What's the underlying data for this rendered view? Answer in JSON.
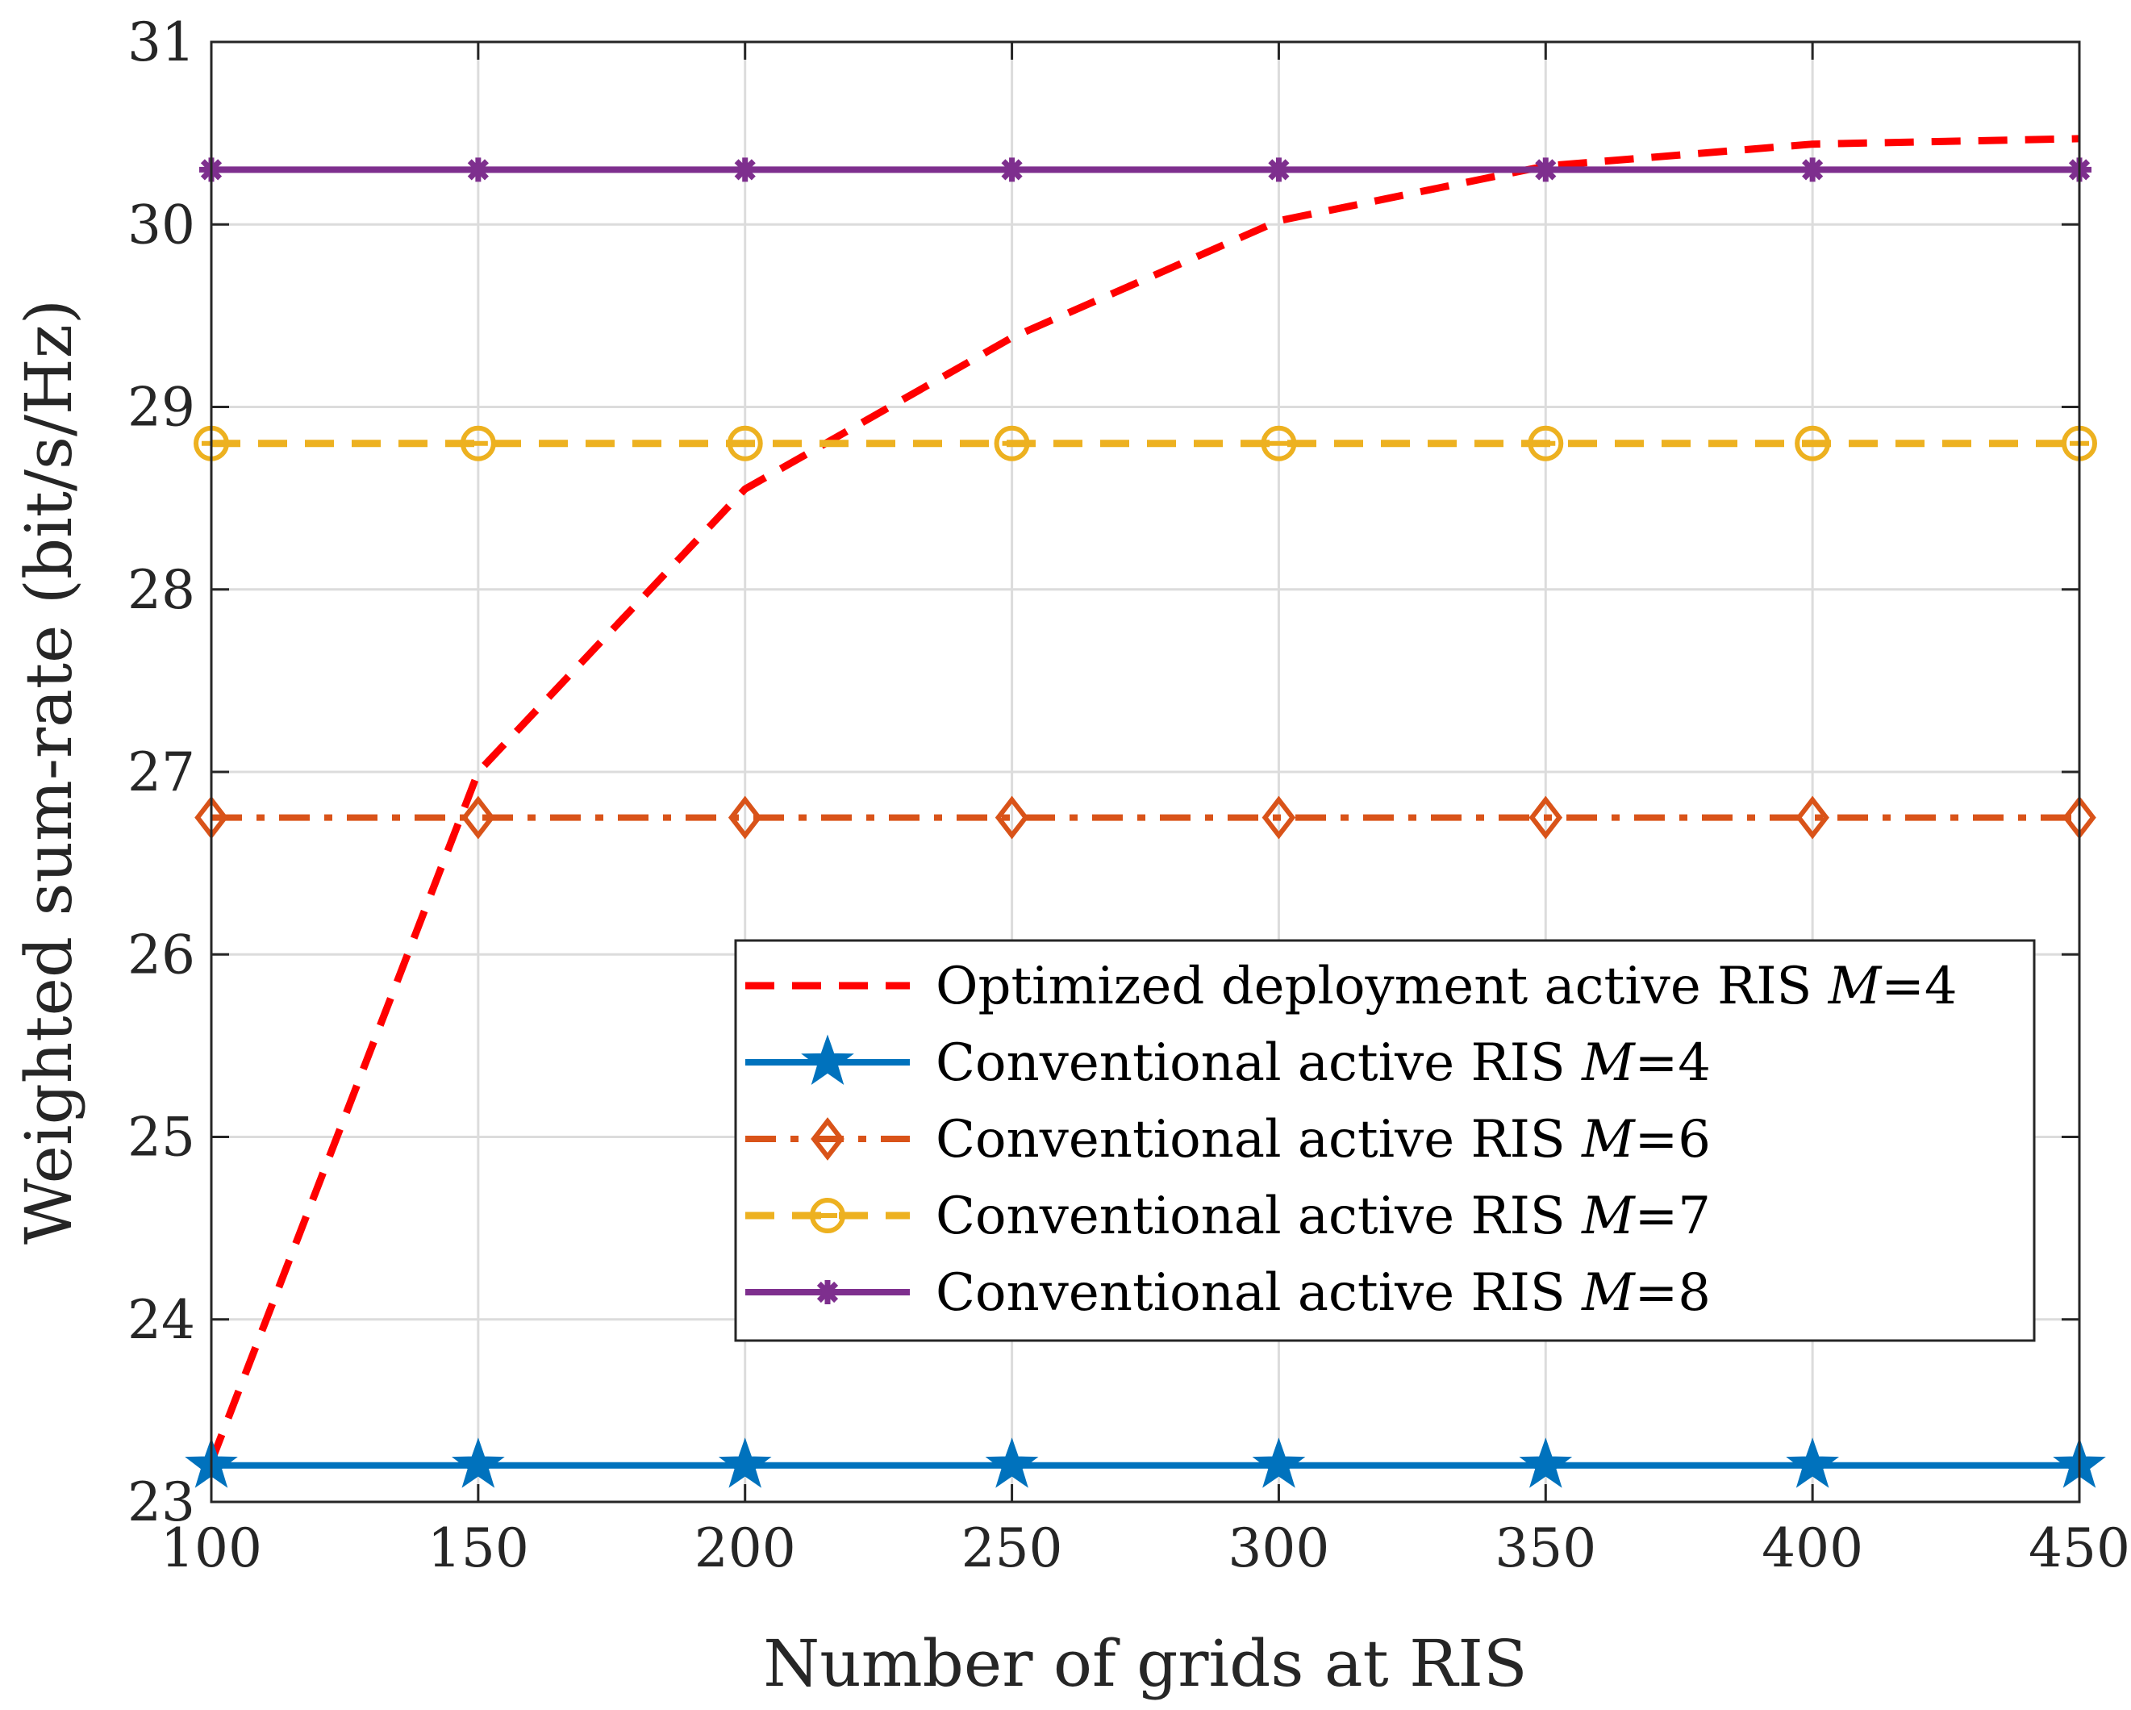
{
  "chart_data": {
    "type": "line",
    "title": "",
    "xlabel": "Number of grids at RIS",
    "ylabel": "Weighted sum-rate (bit/s/Hz)",
    "xlim": [
      100,
      450
    ],
    "ylim": [
      23,
      31
    ],
    "xticks": [
      100,
      150,
      200,
      250,
      300,
      350,
      400,
      450
    ],
    "yticks": [
      23,
      24,
      25,
      26,
      27,
      28,
      29,
      30,
      31
    ],
    "grid": true,
    "legend_position": "center-right",
    "x": [
      100,
      150,
      200,
      250,
      300,
      350,
      400,
      450
    ],
    "series": [
      {
        "name": "Optimized deployment active RIS M=4",
        "label_text": "Optimized deployment active RIS ",
        "label_var": "M",
        "label_value": "=4",
        "color": "#ff0000",
        "line_style": "dashed",
        "marker": "none",
        "values": [
          23.22,
          27.0,
          28.55,
          29.38,
          30.02,
          30.32,
          30.44,
          30.47
        ]
      },
      {
        "name": "Conventional active RIS M=4",
        "label_text": "Conventional active RIS ",
        "label_var": "M",
        "label_value": "=4",
        "color": "#0072bd",
        "line_style": "solid",
        "marker": "pentagram",
        "values": [
          23.2,
          23.2,
          23.2,
          23.2,
          23.2,
          23.2,
          23.2,
          23.2
        ]
      },
      {
        "name": "Conventional active RIS M=6",
        "label_text": "Conventional active RIS ",
        "label_var": "M",
        "label_value": "=6",
        "color": "#d95319",
        "line_style": "dashdot",
        "marker": "diamond",
        "values": [
          26.75,
          26.75,
          26.75,
          26.75,
          26.75,
          26.75,
          26.75,
          26.75
        ]
      },
      {
        "name": "Conventional active RIS M=7",
        "label_text": "Conventional active RIS ",
        "label_var": "M",
        "label_value": "=7",
        "color": "#edb120",
        "line_style": "dashed",
        "marker": "circle-dash",
        "values": [
          28.8,
          28.8,
          28.8,
          28.8,
          28.8,
          28.8,
          28.8,
          28.8
        ]
      },
      {
        "name": "Conventional active RIS M=8",
        "label_text": "Conventional active RIS ",
        "label_var": "M",
        "label_value": "=8",
        "color": "#7e2f8e",
        "line_style": "solid",
        "marker": "asterisk",
        "values": [
          30.3,
          30.3,
          30.3,
          30.3,
          30.3,
          30.3,
          30.3,
          30.3
        ]
      }
    ]
  }
}
